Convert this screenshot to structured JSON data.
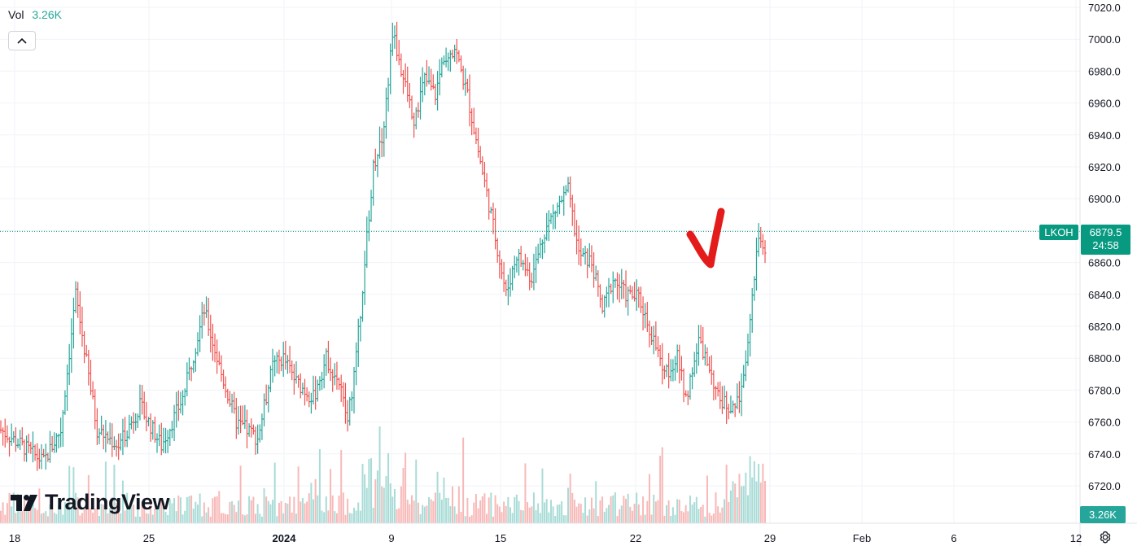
{
  "legend": {
    "label": "Vol",
    "value": "3.26K"
  },
  "symbol": "LKOH",
  "last_price": "6879.5",
  "countdown": "24:58",
  "volume_badge": "3.26K",
  "brand": "TradingView",
  "colors": {
    "up": "#26a69a",
    "down": "#ef5350",
    "up_volume": "#a9dcd7",
    "down_volume": "#f7b9b8",
    "price_line": "#089981",
    "grid": "#f0f3fa",
    "annotation": "#e31b1b"
  },
  "annotation": "red hand-drawn checkmark",
  "chart_data": {
    "type": "ohlc",
    "timeframe": "intraday (approx. hourly bars)",
    "grid": true,
    "y_axis": {
      "side": "right",
      "range": [
        6710,
        7025
      ],
      "ticks": [
        "7020.0",
        "7000.0",
        "6980.0",
        "6960.0",
        "6940.0",
        "6920.0",
        "6900.0",
        "6880.0",
        "6860.0",
        "6840.0",
        "6820.0",
        "6800.0",
        "6780.0",
        "6760.0",
        "6740.0",
        "6720.0"
      ]
    },
    "x_axis": {
      "ticks": [
        {
          "label": "18",
          "bold": false
        },
        {
          "label": "25",
          "bold": false
        },
        {
          "label": "2024",
          "bold": true
        },
        {
          "label": "9",
          "bold": false
        },
        {
          "label": "15",
          "bold": false
        },
        {
          "label": "22",
          "bold": false
        },
        {
          "label": "29",
          "bold": false
        },
        {
          "label": "Feb",
          "bold": false
        },
        {
          "label": "6",
          "bold": false
        },
        {
          "label": "12",
          "bold": false
        }
      ]
    },
    "key_points": [
      {
        "x": 0,
        "price": 6755
      },
      {
        "x": 20,
        "price": 6735
      },
      {
        "x": 28,
        "price": 6755
      },
      {
        "x": 35,
        "price": 6840
      },
      {
        "x": 45,
        "price": 6755
      },
      {
        "x": 55,
        "price": 6745
      },
      {
        "x": 65,
        "price": 6770
      },
      {
        "x": 75,
        "price": 6745
      },
      {
        "x": 85,
        "price": 6775
      },
      {
        "x": 95,
        "price": 6830
      },
      {
        "x": 103,
        "price": 6790
      },
      {
        "x": 110,
        "price": 6760
      },
      {
        "x": 120,
        "price": 6750
      },
      {
        "x": 127,
        "price": 6795
      },
      {
        "x": 132,
        "price": 6800
      },
      {
        "x": 138,
        "price": 6785
      },
      {
        "x": 146,
        "price": 6775
      },
      {
        "x": 152,
        "price": 6800
      },
      {
        "x": 158,
        "price": 6785
      },
      {
        "x": 162,
        "price": 6760
      },
      {
        "x": 166,
        "price": 6800
      },
      {
        "x": 170,
        "price": 6860
      },
      {
        "x": 174,
        "price": 6920
      },
      {
        "x": 179,
        "price": 6945
      },
      {
        "x": 183,
        "price": 7005
      },
      {
        "x": 188,
        "price": 6975
      },
      {
        "x": 193,
        "price": 6950
      },
      {
        "x": 198,
        "price": 6975
      },
      {
        "x": 203,
        "price": 6965
      },
      {
        "x": 207,
        "price": 6990
      },
      {
        "x": 212,
        "price": 6995
      },
      {
        "x": 218,
        "price": 6965
      },
      {
        "x": 223,
        "price": 6930
      },
      {
        "x": 229,
        "price": 6890
      },
      {
        "x": 236,
        "price": 6840
      },
      {
        "x": 241,
        "price": 6865
      },
      {
        "x": 248,
        "price": 6850
      },
      {
        "x": 254,
        "price": 6880
      },
      {
        "x": 260,
        "price": 6895
      },
      {
        "x": 265,
        "price": 6905
      },
      {
        "x": 270,
        "price": 6865
      },
      {
        "x": 276,
        "price": 6860
      },
      {
        "x": 281,
        "price": 6830
      },
      {
        "x": 286,
        "price": 6850
      },
      {
        "x": 292,
        "price": 6840
      },
      {
        "x": 298,
        "price": 6838
      },
      {
        "x": 304,
        "price": 6815
      },
      {
        "x": 310,
        "price": 6790
      },
      {
        "x": 316,
        "price": 6800
      },
      {
        "x": 320,
        "price": 6775
      },
      {
        "x": 326,
        "price": 6810
      },
      {
        "x": 331,
        "price": 6795
      },
      {
        "x": 335,
        "price": 6775
      },
      {
        "x": 340,
        "price": 6770
      },
      {
        "x": 345,
        "price": 6775
      },
      {
        "x": 349,
        "price": 6810
      },
      {
        "x": 354,
        "price": 6875
      },
      {
        "x": 357,
        "price": 6870
      }
    ],
    "bar_count": 358,
    "last": 6879.5
  }
}
